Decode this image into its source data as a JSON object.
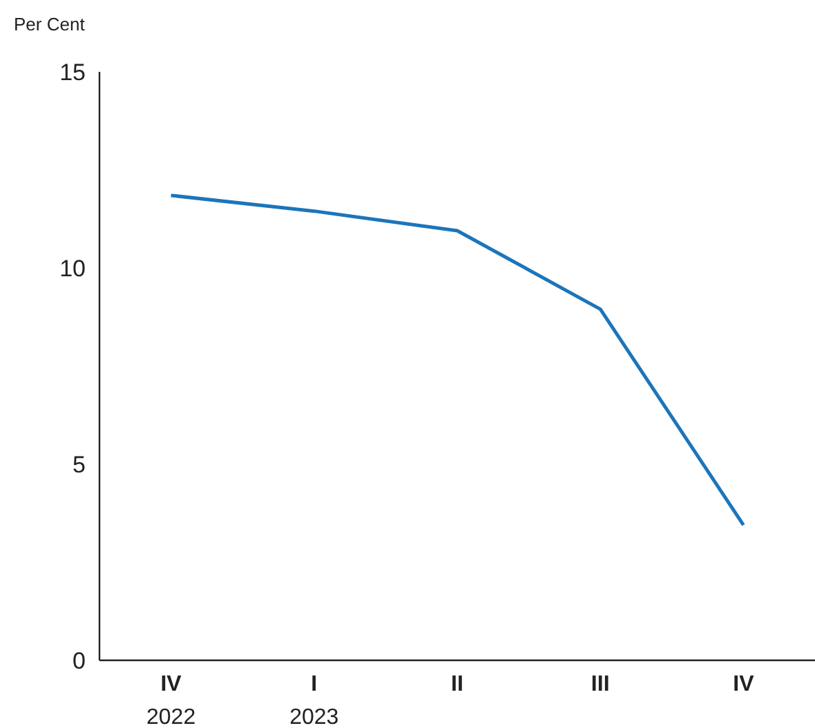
{
  "chart_data": {
    "type": "line",
    "ylabel": "Per Cent",
    "categories": [
      "IV\n2022",
      "I\n2023",
      "II",
      "III",
      "IV"
    ],
    "series": [
      {
        "color": "#1b75bb",
        "values": [
          11.85,
          11.45,
          10.95,
          8.95,
          3.45
        ]
      }
    ],
    "ylim": [
      0,
      15
    ],
    "yticks": [
      0,
      5,
      10,
      15
    ],
    "grid": false,
    "marker": "none",
    "line_style": "solid"
  }
}
